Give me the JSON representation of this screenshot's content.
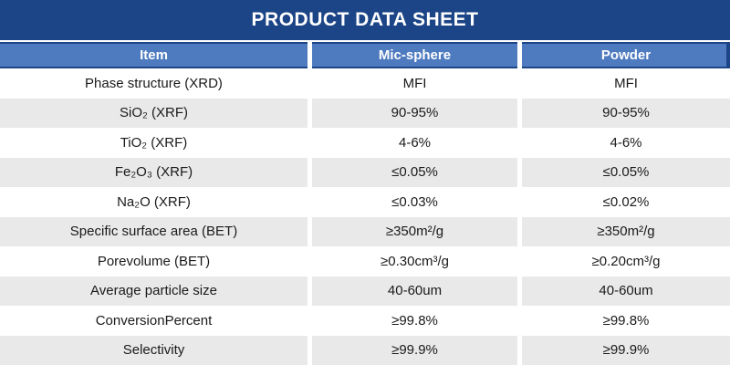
{
  "title": "PRODUCT DATA SHEET",
  "colors": {
    "title_bar": "#1C4587",
    "header_row": "#4E7BBF",
    "stripe_row": "#E9E9E9",
    "header_text": "#FFFFFF",
    "body_text": "#1A1A1A"
  },
  "table": {
    "columns": [
      {
        "key": "item",
        "label": "Item"
      },
      {
        "key": "mic_sphere",
        "label": "Mic-sphere"
      },
      {
        "key": "powder",
        "label": "Powder"
      }
    ],
    "rows": [
      {
        "item": "Phase structure (XRD)",
        "mic_sphere": "MFI",
        "powder": "MFI"
      },
      {
        "item": "SiO₂ (XRF)",
        "mic_sphere": "90-95%",
        "powder": "90-95%"
      },
      {
        "item": "TiO₂ (XRF)",
        "mic_sphere": "4-6%",
        "powder": "4-6%"
      },
      {
        "item": "Fe₂O₃ (XRF)",
        "mic_sphere": "≤0.05%",
        "powder": "≤0.05%"
      },
      {
        "item": "Na₂O (XRF)",
        "mic_sphere": "≤0.03%",
        "powder": "≤0.02%"
      },
      {
        "item": "Specific surface area (BET)",
        "mic_sphere": "≥350m²/g",
        "powder": "≥350m²/g"
      },
      {
        "item": "Porevolume (BET)",
        "mic_sphere": "≥0.30cm³/g",
        "powder": "≥0.20cm³/g"
      },
      {
        "item": "Average particle size",
        "mic_sphere": "40-60um",
        "powder": "40-60um"
      },
      {
        "item": "ConversionPercent",
        "mic_sphere": "≥99.8%",
        "powder": "≥99.8%"
      },
      {
        "item": "Selectivity",
        "mic_sphere": "≥99.9%",
        "powder": "≥99.9%"
      }
    ]
  },
  "chart_data": {
    "type": "table",
    "title": "PRODUCT DATA SHEET",
    "columns": [
      "Item",
      "Mic-sphere",
      "Powder"
    ],
    "rows": [
      [
        "Phase structure (XRD)",
        "MFI",
        "MFI"
      ],
      [
        "SiO₂ (XRF)",
        "90-95%",
        "90-95%"
      ],
      [
        "TiO₂ (XRF)",
        "4-6%",
        "4-6%"
      ],
      [
        "Fe₂O₃ (XRF)",
        "≤0.05%",
        "≤0.05%"
      ],
      [
        "Na₂O (XRF)",
        "≤0.03%",
        "≤0.02%"
      ],
      [
        "Specific surface area (BET)",
        "≥350m²/g",
        "≥350m²/g"
      ],
      [
        "Porevolume (BET)",
        "≥0.30cm³/g",
        "≥0.20cm³/g"
      ],
      [
        "Average particle size",
        "40-60um",
        "40-60um"
      ],
      [
        "ConversionPercent",
        "≥99.8%",
        "≥99.8%"
      ],
      [
        "Selectivity",
        "≥99.9%",
        "≥99.9%"
      ]
    ]
  }
}
